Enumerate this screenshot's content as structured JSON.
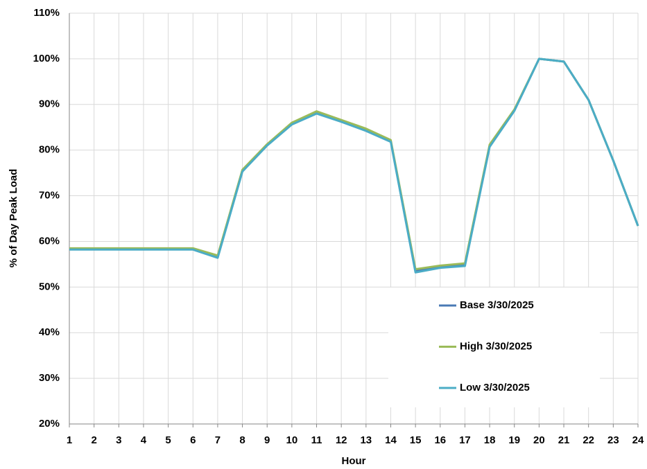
{
  "chart_data": {
    "type": "line",
    "x_label": "Hour",
    "y_label": "% of Day Peak Load",
    "x": [
      1,
      2,
      3,
      4,
      5,
      6,
      7,
      8,
      9,
      10,
      11,
      12,
      13,
      14,
      15,
      16,
      17,
      18,
      19,
      20,
      21,
      22,
      23,
      24
    ],
    "xlim": [
      1,
      24
    ],
    "xticks": [
      1,
      2,
      3,
      4,
      5,
      6,
      7,
      8,
      9,
      10,
      11,
      12,
      13,
      14,
      15,
      16,
      17,
      18,
      19,
      20,
      21,
      22,
      23,
      24
    ],
    "ylim": [
      20,
      110
    ],
    "yticks": [
      {
        "value": 20,
        "label": "20%"
      },
      {
        "value": 30,
        "label": "30%"
      },
      {
        "value": 40,
        "label": "40%"
      },
      {
        "value": 50,
        "label": "50%"
      },
      {
        "value": 60,
        "label": "60%"
      },
      {
        "value": 70,
        "label": "70%"
      },
      {
        "value": 80,
        "label": "80%"
      },
      {
        "value": 90,
        "label": "90%"
      },
      {
        "value": 100,
        "label": "100%"
      },
      {
        "value": 110,
        "label": "110%"
      }
    ],
    "grid": true,
    "legend": "lower right",
    "series": [
      {
        "name": "Base 3/30/2025",
        "color": "#4a7ab5",
        "values": [
          58.3,
          58.3,
          58.3,
          58.3,
          58.3,
          58.3,
          56.6,
          75.5,
          81.1,
          85.8,
          88.2,
          86.4,
          84.4,
          82.0,
          53.5,
          54.4,
          54.9,
          80.9,
          88.7,
          100,
          99.4,
          91.0,
          77.7,
          63.4
        ]
      },
      {
        "name": "High 3/30/2025",
        "color": "#9bbb59",
        "values": [
          58.5,
          58.5,
          58.5,
          58.5,
          58.5,
          58.5,
          56.9,
          75.7,
          81.3,
          86.0,
          88.5,
          86.6,
          84.7,
          82.2,
          53.9,
          54.7,
          55.2,
          81.2,
          88.9,
          100,
          99.4,
          91.0,
          77.7,
          63.4
        ]
      },
      {
        "name": "Low 3/30/2025",
        "color": "#4bacc6",
        "values": [
          58.2,
          58.2,
          58.2,
          58.2,
          58.2,
          58.2,
          56.4,
          75.3,
          81.0,
          85.6,
          88.0,
          86.2,
          84.2,
          81.8,
          53.2,
          54.2,
          54.6,
          80.7,
          88.6,
          100,
          99.4,
          91.0,
          77.7,
          63.4
        ]
      }
    ]
  }
}
